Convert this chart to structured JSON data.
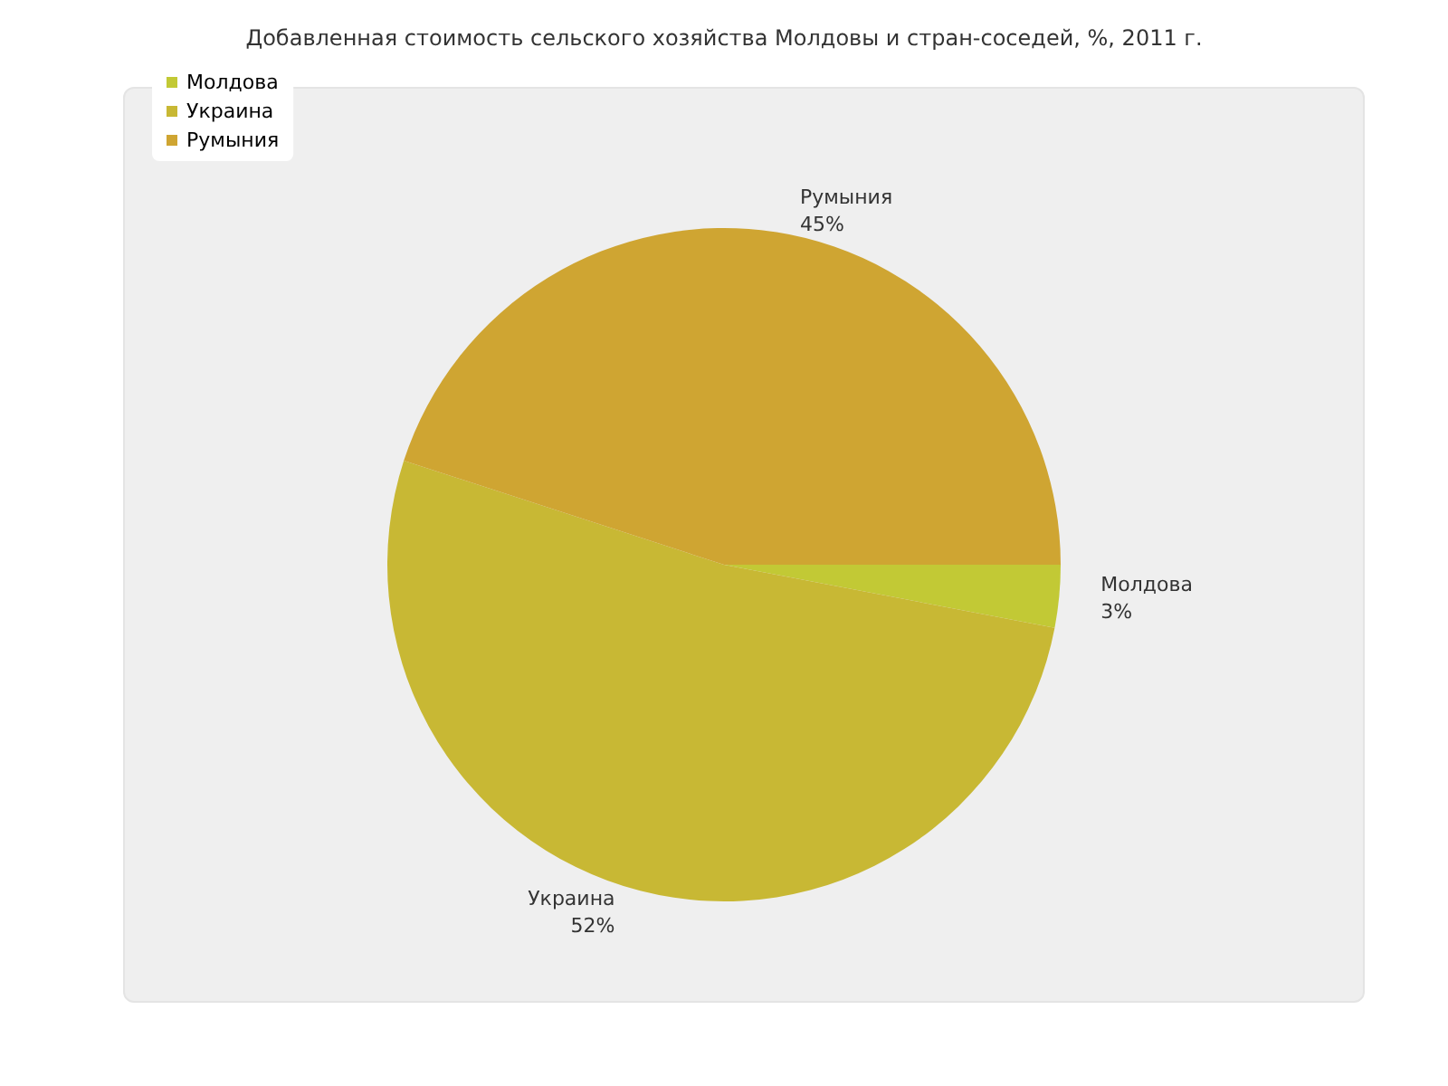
{
  "chart_data": {
    "type": "pie",
    "title": "Добавленная стоимость сельского хозяйства Молдовы и стран-соседей, %, 2011 г.",
    "categories": [
      "Молдова",
      "Украина",
      "Румыния"
    ],
    "values": [
      3,
      52,
      45
    ],
    "colors": [
      "#c2c935",
      "#c8b834",
      "#cfa532"
    ],
    "value_labels": [
      "3%",
      "52%",
      "45%"
    ],
    "legend": "top left"
  }
}
